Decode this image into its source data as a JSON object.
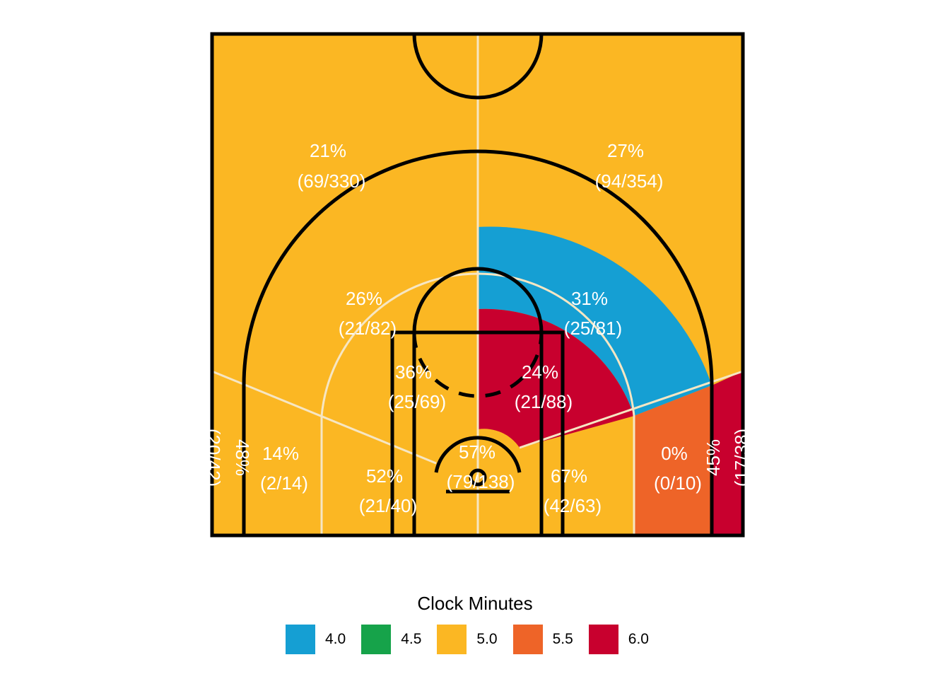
{
  "chart_data": {
    "type": "heatmap",
    "legend": {
      "title": "Clock Minutes",
      "position": "bottom",
      "items": [
        {
          "label": "4.0",
          "color": "#159FD3"
        },
        {
          "label": "4.5",
          "color": "#16A34A"
        },
        {
          "label": "5.0",
          "color": "#FBB723"
        },
        {
          "label": "5.5",
          "color": "#EE6428"
        },
        {
          "label": "6.0",
          "color": "#C8002E"
        }
      ]
    },
    "zones": [
      {
        "id": "backcourt-left",
        "pct": "21%",
        "shots": "(69/330)",
        "clock_minutes": 5.0
      },
      {
        "id": "backcourt-right",
        "pct": "27%",
        "shots": "(94/354)",
        "clock_minutes": 5.0
      },
      {
        "id": "three-left-wing",
        "pct": "26%",
        "shots": "(21/82)",
        "clock_minutes": 5.0
      },
      {
        "id": "three-right-wing",
        "pct": "31%",
        "shots": "(25/81)",
        "clock_minutes": 4.0
      },
      {
        "id": "mid-left-elbow",
        "pct": "36%",
        "shots": "(25/69)",
        "clock_minutes": 5.0
      },
      {
        "id": "mid-right-elbow",
        "pct": "24%",
        "shots": "(21/88)",
        "clock_minutes": 6.0
      },
      {
        "id": "restricted-area",
        "pct": "57%",
        "shots": "(79/138)",
        "clock_minutes": 5.0
      },
      {
        "id": "paint-left",
        "pct": "52%",
        "shots": "(21/40)",
        "clock_minutes": 5.0
      },
      {
        "id": "paint-right",
        "pct": "67%",
        "shots": "(42/63)",
        "clock_minutes": 5.0
      },
      {
        "id": "mid-left-baseline",
        "pct": "14%",
        "shots": "(2/14)",
        "clock_minutes": 5.0
      },
      {
        "id": "mid-right-baseline",
        "pct": "0%",
        "shots": "(0/10)",
        "clock_minutes": 5.5
      },
      {
        "id": "corner-three-left",
        "pct": "48%",
        "shots": "(20/42)",
        "clock_minutes": 5.0
      },
      {
        "id": "corner-three-right",
        "pct": "45%",
        "shots": "(17/38)",
        "clock_minutes": 6.0
      }
    ]
  }
}
